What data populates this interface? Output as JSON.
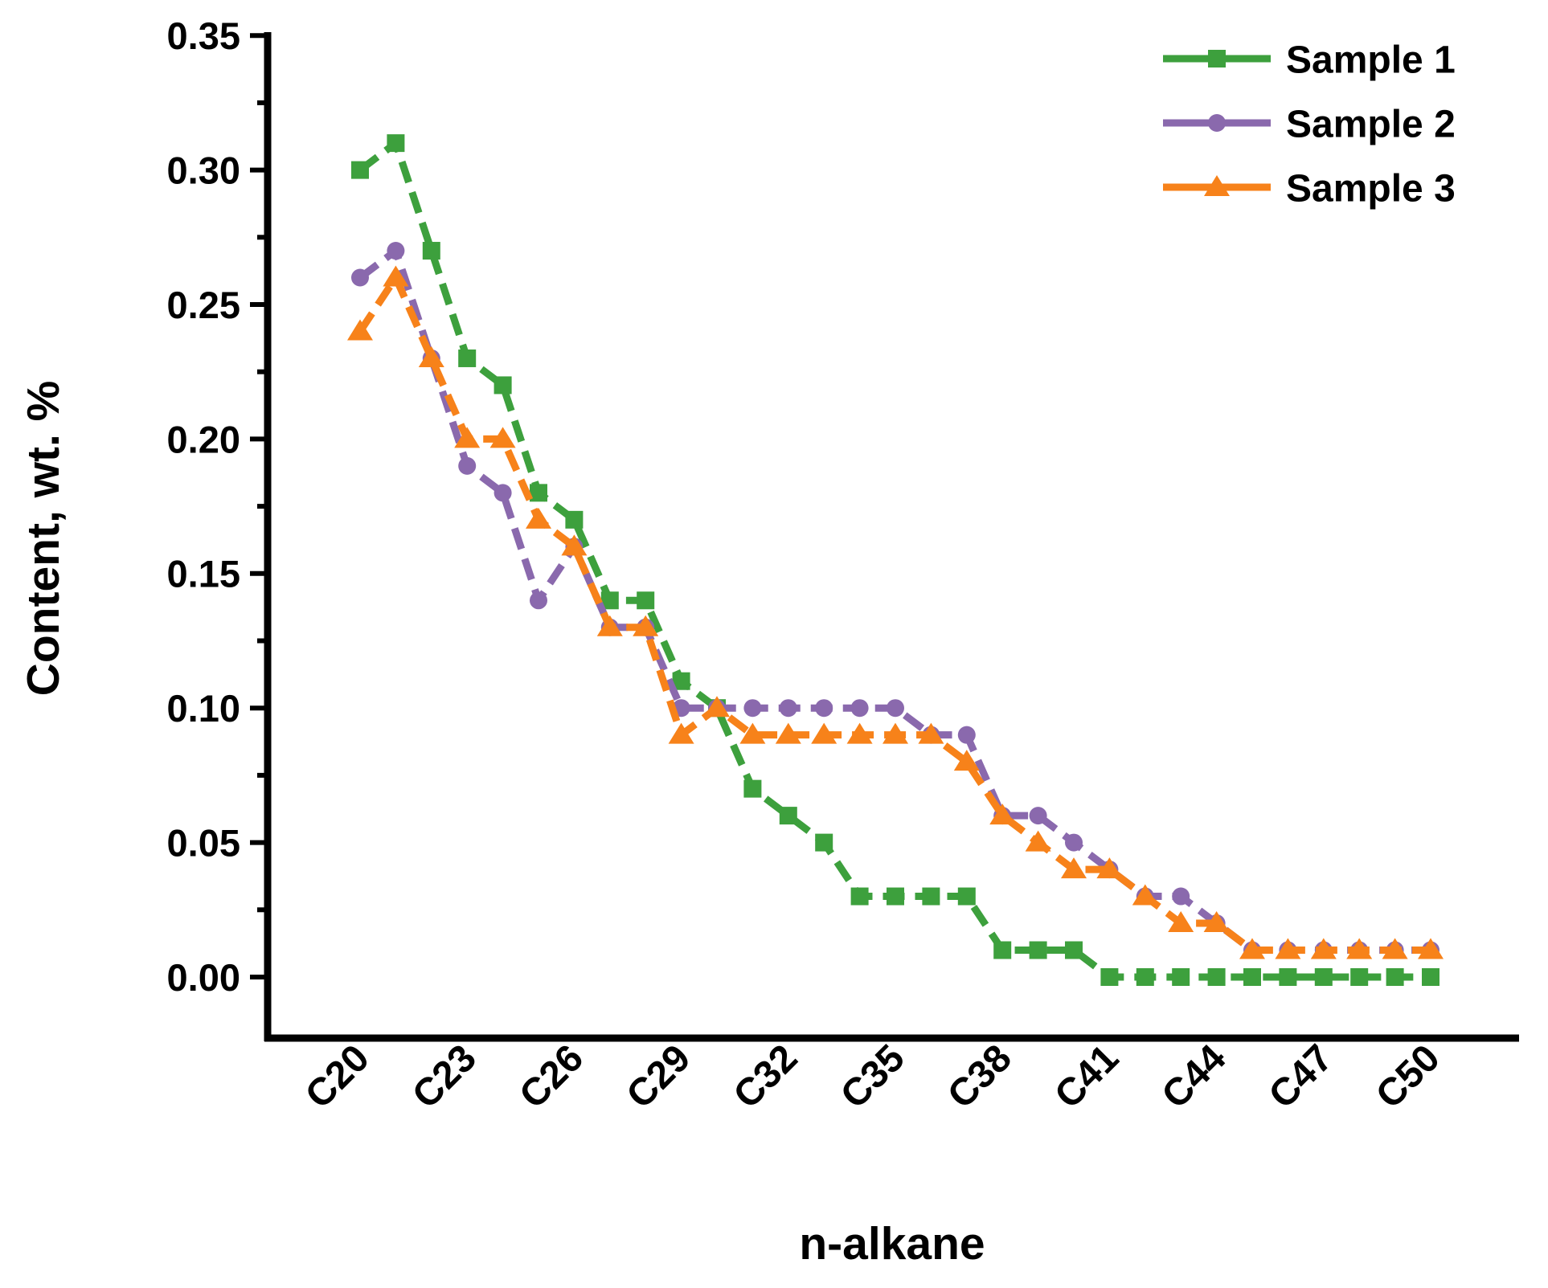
{
  "chart_data": {
    "type": "line",
    "title": "",
    "xlabel": "n-alkane",
    "ylabel": "Content, wt. %",
    "categories": [
      "C20",
      "C21",
      "C22",
      "C23",
      "C24",
      "C25",
      "C26",
      "C27",
      "C28",
      "C29",
      "C30",
      "C31",
      "C32",
      "C33",
      "C34",
      "C35",
      "C36",
      "C37",
      "C38",
      "C39",
      "C40",
      "C41",
      "C42",
      "C43",
      "C44",
      "C45",
      "C46",
      "C47",
      "C48",
      "C49",
      "C50"
    ],
    "x_tick_labels": [
      "C20",
      "C23",
      "C26",
      "C29",
      "C32",
      "C35",
      "C38",
      "C41",
      "C44",
      "C47",
      "C50"
    ],
    "y_tick_labels": [
      "0.00",
      "0.05",
      "0.10",
      "0.15",
      "0.20",
      "0.25",
      "0.30",
      "0.35"
    ],
    "ylim": [
      0.0,
      0.35
    ],
    "y_major_step": 0.05,
    "y_minor_step": 0.025,
    "grid": false,
    "line_style": "dashed",
    "legend_position": "top-right",
    "axis_color": "#000000",
    "background_color": "#ffffff",
    "series": [
      {
        "name": "Sample 1",
        "color": "#3DA03D",
        "marker": "square",
        "values": [
          0.3,
          0.31,
          0.27,
          0.23,
          0.22,
          0.18,
          0.17,
          0.14,
          0.14,
          0.11,
          0.1,
          0.07,
          0.06,
          0.05,
          0.03,
          0.03,
          0.03,
          0.03,
          0.01,
          0.01,
          0.01,
          0.0,
          0.0,
          0.0,
          0.0,
          0.0,
          0.0,
          0.0,
          0.0,
          0.0,
          0.0
        ]
      },
      {
        "name": "Sample 2",
        "color": "#8A69AD",
        "marker": "circle",
        "values": [
          0.26,
          0.27,
          0.23,
          0.19,
          0.18,
          0.14,
          0.16,
          0.13,
          0.13,
          0.1,
          0.1,
          0.1,
          0.1,
          0.1,
          0.1,
          0.1,
          0.09,
          0.09,
          0.06,
          0.06,
          0.05,
          0.04,
          0.03,
          0.03,
          0.02,
          0.01,
          0.01,
          0.01,
          0.01,
          0.01,
          0.01
        ]
      },
      {
        "name": "Sample 3",
        "color": "#F7821A",
        "marker": "triangle",
        "values": [
          0.24,
          0.26,
          0.23,
          0.2,
          0.2,
          0.17,
          0.16,
          0.13,
          0.13,
          0.09,
          0.1,
          0.09,
          0.09,
          0.09,
          0.09,
          0.09,
          0.09,
          0.08,
          0.06,
          0.05,
          0.04,
          0.04,
          0.03,
          0.02,
          0.02,
          0.01,
          0.01,
          0.01,
          0.01,
          0.01,
          0.01
        ]
      }
    ]
  }
}
